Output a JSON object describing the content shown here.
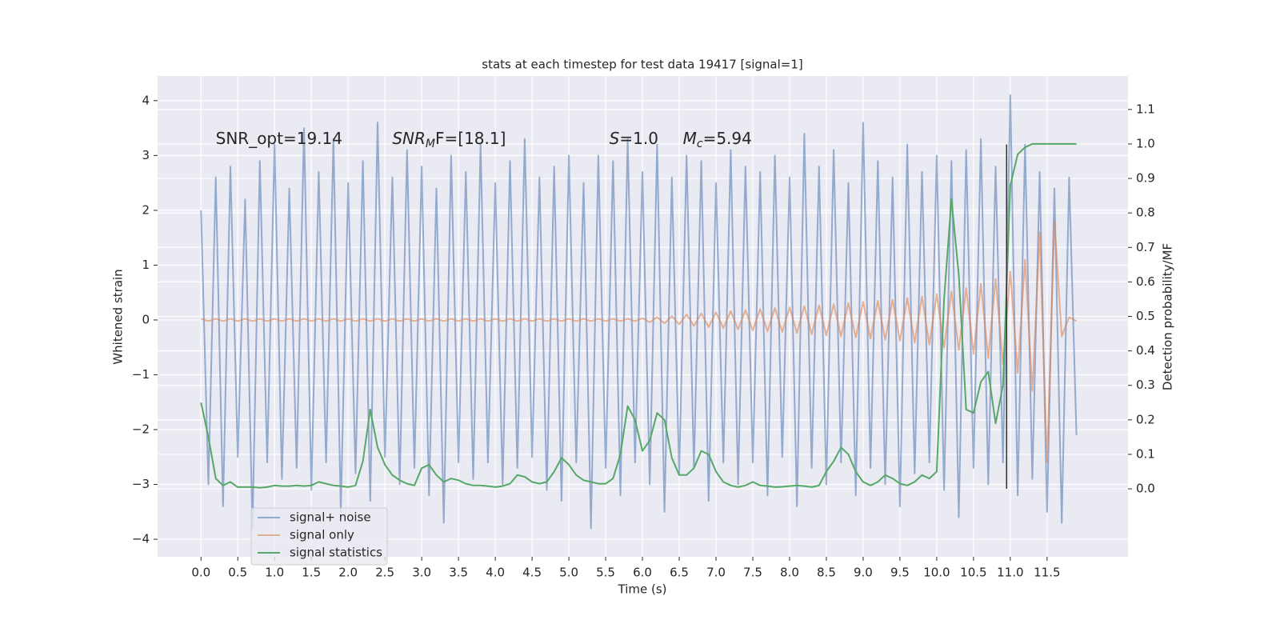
{
  "chart_data": {
    "type": "line",
    "title": "stats at each timestep for test data 19417 [signal=1]",
    "xlabel": "Time (s)",
    "ylabel": "Whitened strain",
    "y2label": "Detection probability/MF",
    "annotations": [
      {
        "base": "SNR_opt=19.14",
        "x": 0.2,
        "y": 3.3
      },
      {
        "base": "SNR",
        "sub": "M",
        "rest": "F=[18.1]",
        "italic": true,
        "x": 2.6,
        "y": 3.3
      },
      {
        "base": "S",
        "rest": "=1.0",
        "italic": true,
        "x": 5.55,
        "y": 3.3
      },
      {
        "base": "M",
        "sub": "c",
        "rest": "=5.94",
        "italic": true,
        "x": 6.55,
        "y": 3.3
      }
    ],
    "vline": {
      "x": 10.95,
      "ymin": -3.08,
      "ymax": 3.2,
      "color": "#333333"
    },
    "xlim": [
      -0.59,
      12.6
    ],
    "ylim": [
      -4.32,
      4.45
    ],
    "y2lim": [
      -0.197,
      1.197
    ],
    "xticks": [
      {
        "value": 0,
        "label": "0.0"
      },
      0.5,
      {
        "value": 1,
        "label": "1.0"
      },
      1.5,
      {
        "value": 2,
        "label": "2.0"
      },
      2.5,
      {
        "value": 3,
        "label": "3.0"
      },
      3.5,
      {
        "value": 4,
        "label": "4.0"
      },
      4.5,
      {
        "value": 5,
        "label": "5.0"
      },
      5.5,
      {
        "value": 6,
        "label": "6.0"
      },
      6.5,
      {
        "value": 7,
        "label": "7.0"
      },
      7.5,
      {
        "value": 8,
        "label": "8.0"
      },
      8.5,
      {
        "value": 9,
        "label": "9.0"
      },
      9.5,
      {
        "value": 10,
        "label": "10.0"
      },
      10.5,
      {
        "value": 11,
        "label": "11.0"
      },
      11.5
    ],
    "yticks": [
      {
        "value": -4,
        "label": "−4"
      },
      {
        "value": -3,
        "label": "−3"
      },
      {
        "value": -2,
        "label": "−2"
      },
      {
        "value": -1,
        "label": "−1"
      },
      0,
      1,
      2,
      3,
      4
    ],
    "y2ticks": [
      {
        "value": 0,
        "label": "0.0"
      },
      0.1,
      0.2,
      0.3,
      0.4,
      0.5,
      0.6,
      0.7,
      0.8,
      0.9,
      {
        "value": 1,
        "label": "1.0"
      },
      1.1
    ],
    "grid": true,
    "legend": "lower left",
    "x": [
      0.0,
      0.1,
      0.2,
      0.3,
      0.4,
      0.5,
      0.6,
      0.7,
      0.8,
      0.9,
      1.0,
      1.1,
      1.2,
      1.3,
      1.4,
      1.5,
      1.6,
      1.7,
      1.8,
      1.9,
      2.0,
      2.1,
      2.2,
      2.3,
      2.4,
      2.5,
      2.6,
      2.7,
      2.8,
      2.9,
      3.0,
      3.1,
      3.2,
      3.3,
      3.4,
      3.5,
      3.6,
      3.7,
      3.8,
      3.9,
      4.0,
      4.1,
      4.2,
      4.3,
      4.4,
      4.5,
      4.6,
      4.7,
      4.8,
      4.9,
      5.0,
      5.1,
      5.2,
      5.3,
      5.4,
      5.5,
      5.6,
      5.7,
      5.8,
      5.9,
      6.0,
      6.1,
      6.2,
      6.3,
      6.4,
      6.5,
      6.6,
      6.7,
      6.8,
      6.9,
      7.0,
      7.1,
      7.2,
      7.3,
      7.4,
      7.5,
      7.6,
      7.7,
      7.8,
      7.9,
      8.0,
      8.1,
      8.2,
      8.3,
      8.4,
      8.5,
      8.6,
      8.7,
      8.8,
      8.9,
      9.0,
      9.1,
      9.2,
      9.3,
      9.4,
      9.5,
      9.6,
      9.7,
      9.8,
      9.9,
      10.0,
      10.1,
      10.2,
      10.3,
      10.4,
      10.5,
      10.6,
      10.7,
      10.8,
      10.9,
      11.0,
      11.1,
      11.2,
      11.3,
      11.4,
      11.5,
      11.6,
      11.7,
      11.8,
      11.9
    ],
    "series": [
      {
        "name": "signal+ noise",
        "color": "#4c72b0",
        "opacity": 0.55,
        "values": [
          2.0,
          -3.0,
          2.6,
          -3.4,
          2.8,
          -2.5,
          2.2,
          -3.8,
          2.9,
          -2.6,
          3.2,
          -2.9,
          2.4,
          -2.7,
          3.5,
          -3.1,
          2.7,
          -2.6,
          3.3,
          -3.5,
          2.5,
          -2.8,
          2.9,
          -3.3,
          3.6,
          -2.5,
          2.6,
          -3.0,
          3.1,
          -2.7,
          2.8,
          -3.2,
          2.4,
          -3.7,
          3.0,
          -2.6,
          2.7,
          -2.9,
          3.2,
          -2.6,
          2.5,
          -3.0,
          2.9,
          -2.7,
          3.3,
          -2.5,
          2.6,
          -3.1,
          2.8,
          -3.3,
          3.0,
          -2.6,
          2.5,
          -3.8,
          3.0,
          -2.7,
          2.9,
          -3.2,
          3.3,
          -2.6,
          2.7,
          -3.0,
          3.2,
          -3.5,
          2.6,
          -2.8,
          3.0,
          -2.7,
          2.9,
          -3.3,
          2.5,
          -2.6,
          3.1,
          -3.0,
          2.8,
          -2.6,
          2.7,
          -3.2,
          3.0,
          -2.5,
          2.6,
          -3.4,
          3.4,
          -2.7,
          2.8,
          -3.0,
          3.1,
          -2.6,
          2.5,
          -3.2,
          3.6,
          -2.7,
          2.9,
          -3.0,
          2.6,
          -3.4,
          3.2,
          -2.8,
          2.7,
          -2.6,
          3.0,
          -3.1,
          2.9,
          -3.6,
          3.1,
          -2.7,
          3.3,
          -3.0,
          2.8,
          -2.6,
          4.1,
          -3.2,
          3.2,
          -2.9,
          2.7,
          -3.5,
          2.4,
          -3.7,
          2.6,
          -2.1
        ]
      },
      {
        "name": "signal only",
        "color": "#dd8452",
        "opacity": 0.6,
        "values": [
          0.02,
          -0.02,
          0.02,
          -0.02,
          0.02,
          -0.02,
          0.02,
          -0.02,
          0.02,
          -0.02,
          0.02,
          -0.02,
          0.02,
          -0.02,
          0.02,
          -0.02,
          0.02,
          -0.02,
          0.02,
          -0.02,
          0.02,
          -0.02,
          0.02,
          -0.02,
          0.02,
          -0.02,
          0.02,
          -0.02,
          0.02,
          -0.02,
          0.02,
          -0.02,
          0.02,
          -0.02,
          0.02,
          -0.02,
          0.02,
          -0.02,
          0.02,
          -0.02,
          0.02,
          -0.02,
          0.02,
          -0.02,
          0.02,
          -0.02,
          0.02,
          -0.02,
          0.02,
          -0.02,
          0.02,
          -0.02,
          0.02,
          -0.02,
          0.02,
          -0.02,
          0.02,
          -0.02,
          0.02,
          -0.02,
          0.03,
          -0.04,
          0.05,
          -0.06,
          0.07,
          -0.08,
          0.1,
          -0.11,
          0.12,
          -0.13,
          0.14,
          -0.15,
          0.16,
          -0.17,
          0.18,
          -0.19,
          0.2,
          -0.21,
          0.22,
          -0.22,
          0.23,
          -0.24,
          0.25,
          -0.26,
          0.27,
          -0.28,
          0.29,
          -0.3,
          0.31,
          -0.32,
          0.33,
          -0.34,
          0.35,
          -0.36,
          0.37,
          -0.38,
          0.4,
          -0.41,
          0.43,
          -0.45,
          0.47,
          -0.5,
          0.52,
          -0.55,
          0.58,
          -0.62,
          0.66,
          -0.7,
          0.75,
          -0.8,
          0.88,
          -0.97,
          1.1,
          -1.3,
          1.6,
          -2.6,
          1.8,
          -0.3,
          0.05,
          -0.02
        ]
      },
      {
        "name": "signal statistics",
        "color": "#55a868",
        "opacity": 1,
        "axis": "y2",
        "values": [
          0.25,
          0.15,
          0.03,
          0.01,
          0.02,
          0.005,
          0.005,
          0.005,
          0.003,
          0.005,
          0.01,
          0.008,
          0.008,
          0.01,
          0.008,
          0.01,
          0.02,
          0.015,
          0.01,
          0.008,
          0.005,
          0.01,
          0.08,
          0.23,
          0.12,
          0.07,
          0.04,
          0.025,
          0.015,
          0.01,
          0.06,
          0.07,
          0.04,
          0.02,
          0.03,
          0.025,
          0.015,
          0.01,
          0.01,
          0.008,
          0.005,
          0.008,
          0.015,
          0.04,
          0.035,
          0.02,
          0.015,
          0.02,
          0.05,
          0.09,
          0.07,
          0.04,
          0.025,
          0.02,
          0.015,
          0.015,
          0.03,
          0.1,
          0.24,
          0.2,
          0.11,
          0.14,
          0.22,
          0.2,
          0.09,
          0.04,
          0.04,
          0.06,
          0.11,
          0.1,
          0.05,
          0.02,
          0.01,
          0.005,
          0.01,
          0.02,
          0.01,
          0.008,
          0.005,
          0.006,
          0.008,
          0.01,
          0.008,
          0.005,
          0.01,
          0.05,
          0.08,
          0.12,
          0.1,
          0.05,
          0.02,
          0.01,
          0.02,
          0.04,
          0.03,
          0.015,
          0.01,
          0.02,
          0.04,
          0.03,
          0.05,
          0.55,
          0.84,
          0.62,
          0.23,
          0.22,
          0.31,
          0.34,
          0.19,
          0.3,
          0.88,
          0.97,
          0.99,
          1.0,
          1.0,
          1.0,
          1.0,
          1.0,
          1.0,
          1.0
        ]
      }
    ]
  }
}
